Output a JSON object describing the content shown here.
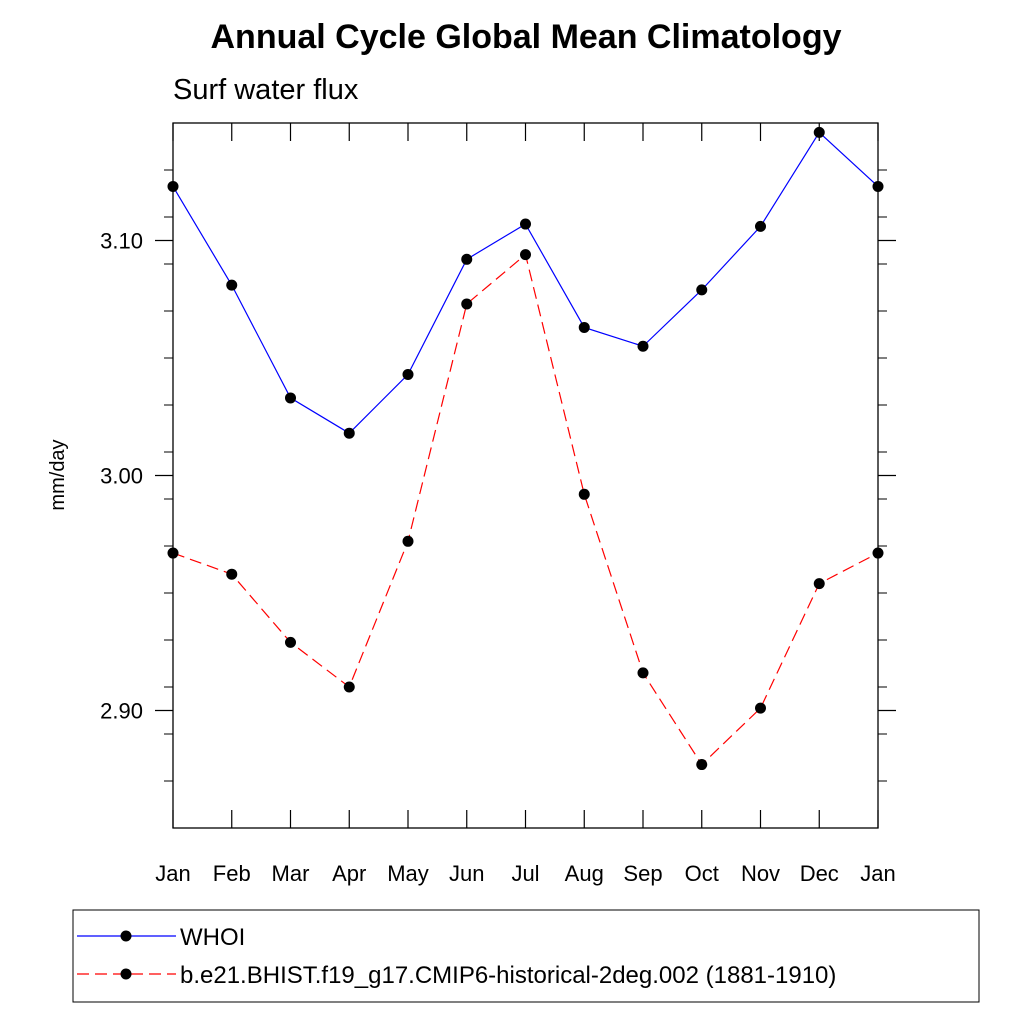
{
  "chart_data": {
    "type": "line",
    "title": "Annual Cycle Global Mean Climatology",
    "subtitle": "Surf water flux",
    "xlabel": "",
    "ylabel": "mm/day",
    "categories": [
      "Jan",
      "Feb",
      "Mar",
      "Apr",
      "May",
      "Jun",
      "Jul",
      "Aug",
      "Sep",
      "Oct",
      "Nov",
      "Dec",
      "Jan"
    ],
    "ylim": [
      2.85,
      3.15
    ],
    "yticks_major": [
      2.9,
      3.0,
      3.1
    ],
    "ytick_labels": [
      "2.90",
      "3.00",
      "3.10"
    ],
    "yticks_minor_step": 0.02,
    "legend_position": "bottom",
    "series": [
      {
        "name": "WHOI",
        "color": "#0000ff",
        "dash": "solid",
        "values": [
          3.123,
          3.081,
          3.033,
          3.018,
          3.043,
          3.092,
          3.107,
          3.063,
          3.055,
          3.079,
          3.106,
          3.146,
          3.123
        ]
      },
      {
        "name": "b.e21.BHIST.f19_g17.CMIP6-historical-2deg.002 (1881-1910)",
        "color": "#ff0000",
        "dash": "dashed",
        "values": [
          2.967,
          2.958,
          2.929,
          2.91,
          2.972,
          3.073,
          3.094,
          2.992,
          2.916,
          2.877,
          2.901,
          2.954,
          2.967
        ]
      }
    ]
  }
}
